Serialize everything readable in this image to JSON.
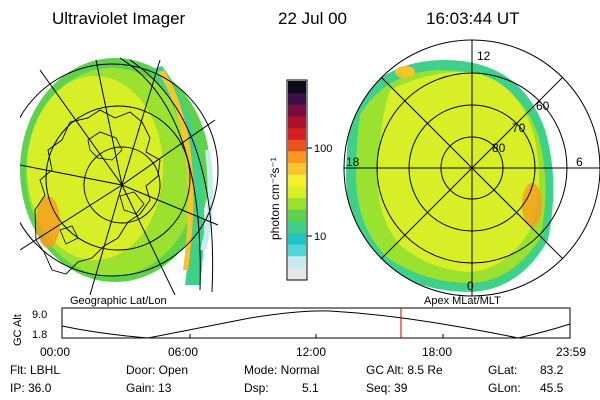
{
  "header": {
    "instrument": "Ultraviolet Imager",
    "date": "22 Jul 00",
    "time": "16:03:44 UT"
  },
  "colorbar": {
    "unit_label": "photon cm⁻²s⁻¹",
    "tick_100": "100",
    "tick_10": "10",
    "colors": [
      "#e6e6e6",
      "#c8eaf0",
      "#4fd6d6",
      "#22c3c3",
      "#3fd08a",
      "#5fd24d",
      "#9be230",
      "#d8ef28",
      "#f7f02a",
      "#f7c52a",
      "#f79a1e",
      "#e8541a",
      "#d21f1f",
      "#b01030",
      "#7a0b3e",
      "#3d0f4a",
      "#0a0a1a"
    ]
  },
  "left_map": {
    "label": "Geographic Lat/Lon"
  },
  "right_map": {
    "label": "Apex MLat/MLT",
    "mlt_12": "12",
    "mlt_18": "18",
    "mlt_6": "6",
    "mlt_0": "0",
    "lat_60": "60",
    "lat_70": "70",
    "lat_80": "80"
  },
  "altitude_plot": {
    "ylabel": "GC Alt",
    "ytick_top": "9.0",
    "ytick_bottom": "1.8",
    "xticks": [
      "00:00",
      "06:00",
      "12:00",
      "18:00",
      "23:59"
    ],
    "marker_color": "#cc0000"
  },
  "info": {
    "flt": "Flt: LBHL",
    "ip": "IP: 36.0",
    "door": "Door: Open",
    "gain": "Gain: 13",
    "mode": "Mode: Normal",
    "dsp": "Dsp:",
    "dsp_value": "5.1",
    "gc_alt": "GC Alt: 8.5 Re",
    "seq": "Seq: 39",
    "glat": "GLat:",
    "glat_value": "83.2",
    "glon": "GLon:",
    "glon_value": "45.5"
  }
}
